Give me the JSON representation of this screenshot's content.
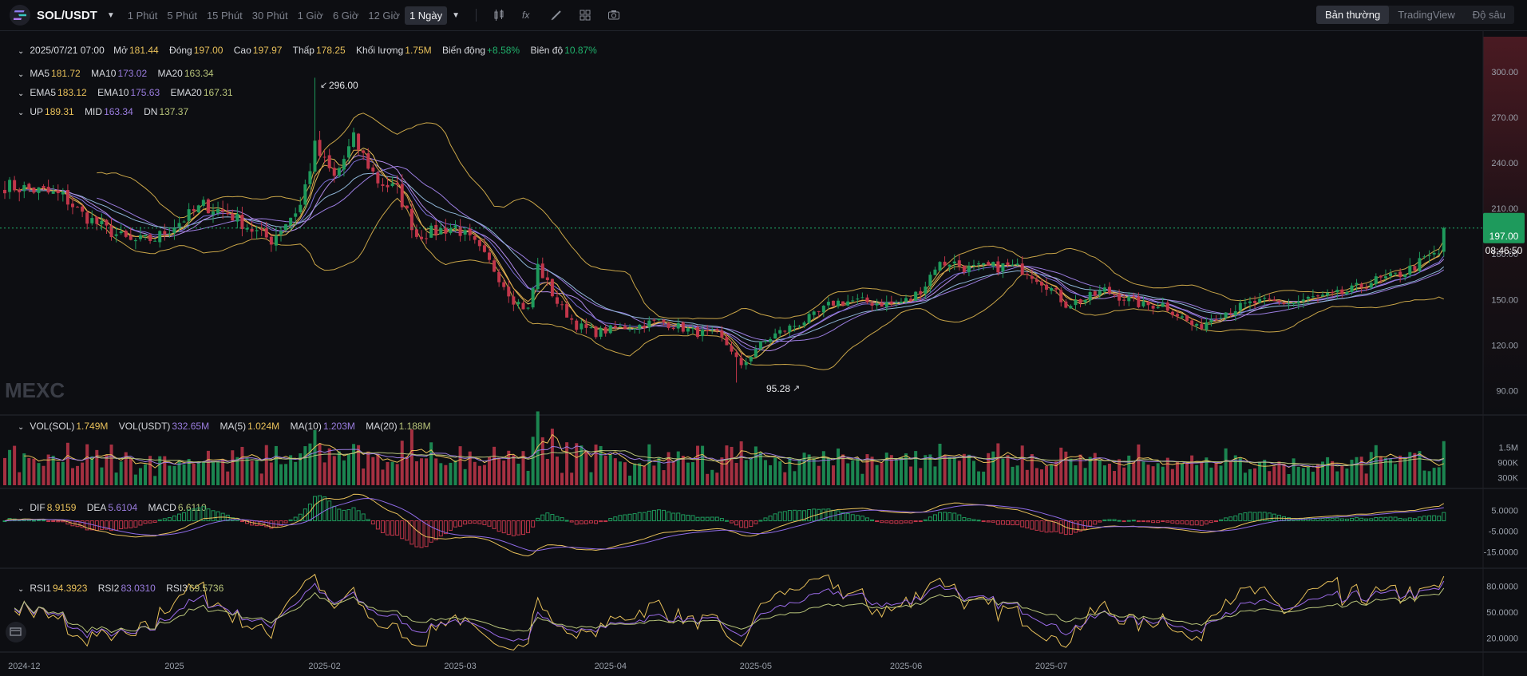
{
  "toolbar": {
    "symbol": "SOL/USDT",
    "timeframes": [
      "1 Phút",
      "5 Phút",
      "15 Phút",
      "30 Phút",
      "1 Giờ",
      "6 Giờ",
      "12 Giờ",
      "1 Ngày"
    ],
    "active_timeframe": "1 Ngày",
    "view_modes": [
      "Bản thường",
      "TradingView",
      "Độ sâu"
    ],
    "active_view": "Bản thường",
    "icons": [
      "candles-icon",
      "indicator-icon",
      "draw-icon",
      "layout-icon",
      "camera-icon"
    ]
  },
  "ohlc": {
    "date": "2025/07/21 07:00",
    "open_label": "Mở",
    "open": "181.44",
    "close_label": "Đóng",
    "close": "197.00",
    "high_label": "Cao",
    "high": "197.97",
    "low_label": "Thấp",
    "low": "178.25",
    "vol_label": "Khối lượng",
    "volume": "1.75M",
    "change_label": "Biến động",
    "change": "+8.58%",
    "amp_label": "Biên độ",
    "amplitude": "10.87%"
  },
  "ma": {
    "ma5_label": "MA5",
    "ma5": "181.72",
    "ma10_label": "MA10",
    "ma10": "173.02",
    "ma20_label": "MA20",
    "ma20": "163.34"
  },
  "ema": {
    "ema5_label": "EMA5",
    "ema5": "183.12",
    "ema10_label": "EMA10",
    "ema10": "175.63",
    "ema20_label": "EMA20",
    "ema20": "167.31"
  },
  "boll": {
    "up_label": "UP",
    "up": "189.31",
    "mid_label": "MID",
    "mid": "163.34",
    "dn_label": "DN",
    "dn": "137.37"
  },
  "vol": {
    "vol_sol_label": "VOL(SOL)",
    "vol_sol": "1.749M",
    "vol_usdt_label": "VOL(USDT)",
    "vol_usdt": "332.65M",
    "ma5_label": "MA(5)",
    "ma5": "1.024M",
    "ma10_label": "MA(10)",
    "ma10": "1.203M",
    "ma20_label": "MA(20)",
    "ma20": "1.188M"
  },
  "macd": {
    "dif_label": "DIF",
    "dif": "8.9159",
    "dea_label": "DEA",
    "dea": "5.6104",
    "macd_label": "MACD",
    "macd": "6.6110"
  },
  "rsi": {
    "rsi1_label": "RSI1",
    "rsi1": "94.3923",
    "rsi2_label": "RSI2",
    "rsi2": "83.0310",
    "rsi3_label": "RSI3",
    "rsi3": "69.5736"
  },
  "price_tag": {
    "price": "197.00",
    "countdown": "08:46:50"
  },
  "markers": {
    "high": "296.00",
    "low": "95.28"
  },
  "watermark": "MEXC",
  "colors": {
    "up": "#1e9a5c",
    "down": "#c1364a",
    "ma5": "#e8c05a",
    "ma10": "#9b7de0",
    "ma20": "#8fb6d8",
    "boll": "#c9a548",
    "dif": "#e8c05a",
    "dea": "#8f6be8",
    "rsi1": "#e8c05a",
    "rsi2": "#9b6be8",
    "rsi3": "#b8c47a",
    "accent_green": "#20b26c"
  },
  "chart_data": {
    "type": "candlestick",
    "x_labels": [
      "2024-12",
      "2025",
      "2025-02",
      "2025-03",
      "2025-04",
      "2025-05",
      "2025-06",
      "2025-07"
    ],
    "price_ticks": [
      "300.00",
      "270.00",
      "240.00",
      "210.00",
      "180.00",
      "150.00",
      "120.00",
      "90.00"
    ],
    "vol_ticks": [
      "1.5M",
      "900K",
      "300K"
    ],
    "macd_ticks": [
      "5.0000",
      "-5.0000",
      "-15.0000"
    ],
    "rsi_ticks": [
      "80.0000",
      "50.0000",
      "20.0000"
    ],
    "ylim": [
      75,
      323
    ],
    "anchors": [
      [
        0,
        225
      ],
      [
        6,
        222
      ],
      [
        12,
        218
      ],
      [
        16,
        206
      ],
      [
        21,
        196
      ],
      [
        26,
        188
      ],
      [
        31,
        190
      ],
      [
        36,
        201
      ],
      [
        41,
        212
      ],
      [
        46,
        207
      ],
      [
        51,
        196
      ],
      [
        55,
        189
      ],
      [
        57,
        197
      ],
      [
        61,
        212
      ],
      [
        64,
        250
      ],
      [
        68,
        230
      ],
      [
        72,
        255
      ],
      [
        77,
        228
      ],
      [
        81,
        222
      ],
      [
        85,
        192
      ],
      [
        89,
        195
      ],
      [
        93,
        198
      ],
      [
        97,
        186
      ],
      [
        101,
        170
      ],
      [
        105,
        150
      ],
      [
        108,
        143
      ],
      [
        110,
        172
      ],
      [
        114,
        148
      ],
      [
        118,
        133
      ],
      [
        122,
        128
      ],
      [
        126,
        131
      ],
      [
        131,
        133
      ],
      [
        135,
        136
      ],
      [
        139,
        132
      ],
      [
        143,
        128
      ],
      [
        147,
        127
      ],
      [
        150,
        117
      ],
      [
        152,
        105
      ],
      [
        155,
        118
      ],
      [
        159,
        127
      ],
      [
        163,
        133
      ],
      [
        167,
        139
      ],
      [
        171,
        148
      ],
      [
        175,
        149
      ],
      [
        179,
        148
      ],
      [
        183,
        147
      ],
      [
        187,
        150
      ],
      [
        190,
        160
      ],
      [
        192,
        172
      ],
      [
        195,
        175
      ],
      [
        199,
        170
      ],
      [
        203,
        171
      ],
      [
        207,
        172
      ],
      [
        211,
        169
      ],
      [
        215,
        160
      ],
      [
        219,
        147
      ],
      [
        223,
        150
      ],
      [
        227,
        156
      ],
      [
        231,
        151
      ],
      [
        235,
        146
      ],
      [
        239,
        147
      ],
      [
        243,
        138
      ],
      [
        246,
        131
      ],
      [
        250,
        140
      ],
      [
        254,
        144
      ],
      [
        258,
        148
      ],
      [
        262,
        148
      ],
      [
        266,
        148
      ],
      [
        270,
        151
      ],
      [
        274,
        152
      ],
      [
        278,
        156
      ],
      [
        282,
        162
      ],
      [
        286,
        164
      ],
      [
        290,
        170
      ],
      [
        294,
        178
      ],
      [
        296,
        180
      ],
      [
        297,
        197
      ]
    ],
    "last_candle": {
      "open": 181.44,
      "close": 197.0,
      "high": 197.97,
      "low": 178.25
    }
  }
}
